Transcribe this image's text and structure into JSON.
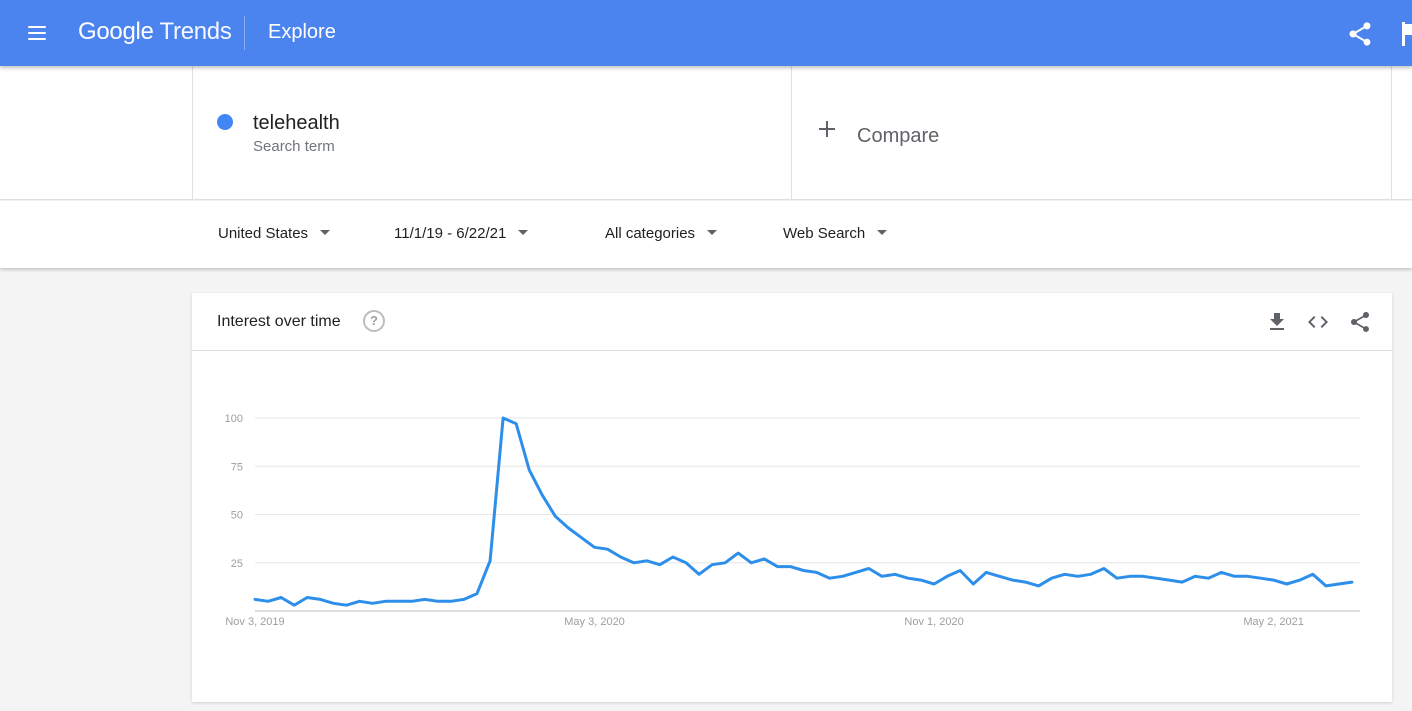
{
  "header": {
    "logo_google": "Google",
    "logo_trends": "Trends",
    "page_title": "Explore",
    "bg_color": "#4b84ee"
  },
  "search_terms": [
    {
      "name": "telehealth",
      "type": "Search term",
      "color": "#4285f4"
    }
  ],
  "compare": {
    "label": "Compare"
  },
  "filters": {
    "region": "United States",
    "time_range": "11/1/19 - 6/22/21",
    "category": "All categories",
    "search_type": "Web Search"
  },
  "card": {
    "title": "Interest over time",
    "help_icon": "?",
    "tools": [
      "download-icon",
      "embed-icon",
      "share-icon"
    ]
  },
  "chart_data": {
    "type": "line",
    "y_ticks": [
      25,
      50,
      75,
      100
    ],
    "ylim": [
      0,
      100
    ],
    "x_tick_labels": [
      "Nov 3, 2019",
      "May 3, 2020",
      "Nov 1, 2020",
      "May 2, 2021"
    ],
    "x_tick_weeks": [
      0,
      26,
      52,
      78
    ],
    "series": [
      {
        "color": "#2d8fea",
        "values": [
          6,
          5,
          7,
          3,
          7,
          6,
          4,
          3,
          5,
          4,
          5,
          5,
          5,
          6,
          5,
          5,
          6,
          9,
          26,
          100,
          97,
          73,
          60,
          49,
          43,
          38,
          33,
          32,
          28,
          25,
          26,
          24,
          28,
          25,
          19,
          24,
          25,
          30,
          25,
          27,
          23,
          23,
          21,
          20,
          17,
          18,
          20,
          22,
          18,
          19,
          17,
          16,
          14,
          18,
          21,
          14,
          20,
          18,
          16,
          15,
          13,
          17,
          19,
          18,
          19,
          22,
          17,
          18,
          18,
          17,
          16,
          15,
          18,
          17,
          20,
          18,
          18,
          17,
          16,
          14,
          16,
          19,
          13,
          14,
          15
        ]
      }
    ]
  }
}
